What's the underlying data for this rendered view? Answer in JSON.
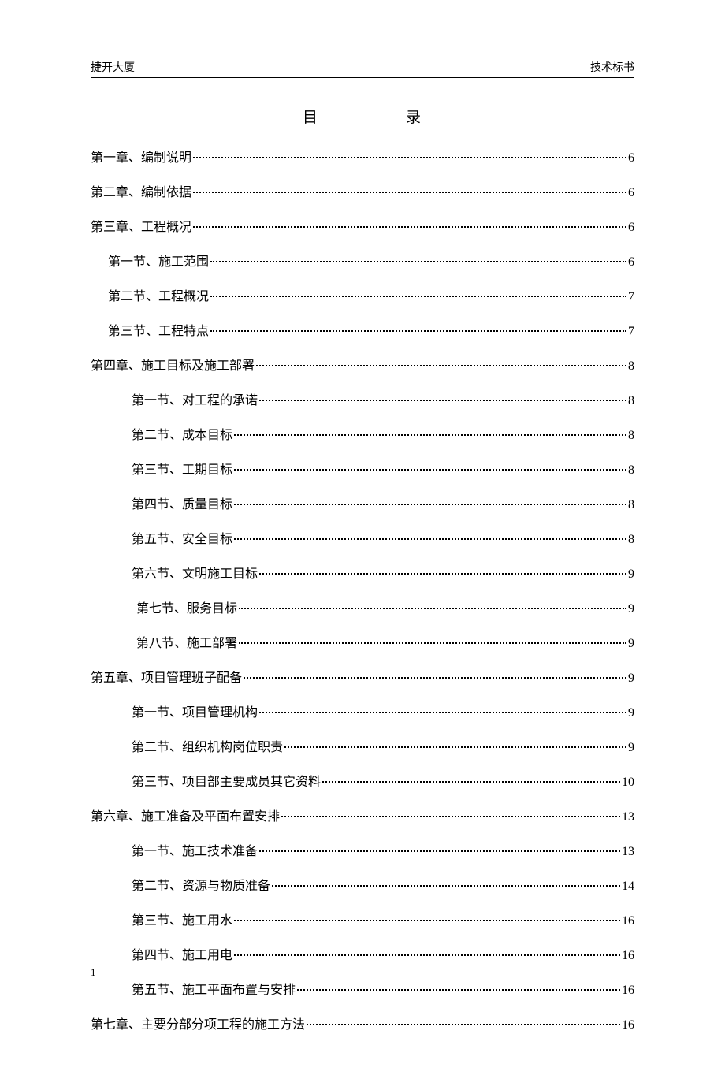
{
  "header": {
    "left": "捷开大厦",
    "right": "技术标书"
  },
  "title": {
    "char1": "目",
    "char2": "录"
  },
  "toc": [
    {
      "label": "第一章、编制说明",
      "page": "6",
      "indent": "indent-0"
    },
    {
      "label": "第二章、编制依据",
      "page": "6",
      "indent": "indent-0"
    },
    {
      "label": "第三章、工程概况",
      "page": "6",
      "indent": "indent-0"
    },
    {
      "label": "第一节、施工范围",
      "page": "6",
      "indent": "indent-1"
    },
    {
      "label": "第二节、工程概况",
      "page": "7",
      "indent": "indent-1"
    },
    {
      "label": "第三节、工程特点",
      "page": "7",
      "indent": "indent-1"
    },
    {
      "label": "第四章、施工目标及施工部署",
      "page": "8",
      "indent": "indent-0"
    },
    {
      "label": "第一节、对工程的承诺",
      "page": "8",
      "indent": "indent-2"
    },
    {
      "label": "第二节、成本目标",
      "page": "8",
      "indent": "indent-2"
    },
    {
      "label": "第三节、工期目标",
      "page": "8",
      "indent": "indent-2"
    },
    {
      "label": "第四节、质量目标",
      "page": "8",
      "indent": "indent-2"
    },
    {
      "label": "第五节、安全目标",
      "page": "8",
      "indent": "indent-2"
    },
    {
      "label": "第六节、文明施工目标",
      "page": "9",
      "indent": "indent-2"
    },
    {
      "label": "第七节、服务目标",
      "page": "9",
      "indent": "indent-2b"
    },
    {
      "label": "第八节、施工部署",
      "page": "9",
      "indent": "indent-2b"
    },
    {
      "label": "第五章、项目管理班子配备",
      "page": "9",
      "indent": "indent-0"
    },
    {
      "label": "第一节、项目管理机构",
      "page": "9",
      "indent": "indent-2"
    },
    {
      "label": "第二节、组织机构岗位职责",
      "page": "9",
      "indent": "indent-2"
    },
    {
      "label": "第三节、项目部主要成员其它资料",
      "page": "10",
      "indent": "indent-2"
    },
    {
      "label": "第六章、施工准备及平面布置安排",
      "page": "13",
      "indent": "indent-0"
    },
    {
      "label": "第一节、施工技术准备",
      "page": "13",
      "indent": "indent-2"
    },
    {
      "label": "第二节、资源与物质准备",
      "page": "14",
      "indent": "indent-2"
    },
    {
      "label": "第三节、施工用水",
      "page": "16",
      "indent": "indent-2"
    },
    {
      "label": "第四节、施工用电",
      "page": "16",
      "indent": "indent-2"
    },
    {
      "label": "第五节、施工平面布置与安排",
      "page": "16",
      "indent": "indent-2"
    },
    {
      "label": "第七章、主要分部分项工程的施工方法",
      "page": "16",
      "indent": "indent-0"
    }
  ],
  "footer": {
    "pageNumber": "1"
  }
}
